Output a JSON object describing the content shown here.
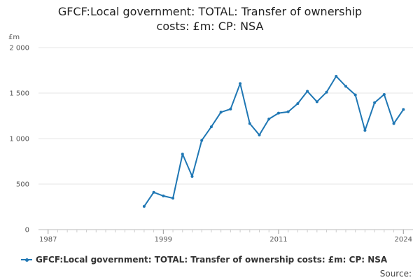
{
  "chart_data": {
    "type": "line",
    "title_lines": [
      "GFCF:Local government: TOTAL: Transfer of ownership",
      "costs: £m: CP: NSA"
    ],
    "unit_label": "£m",
    "xlim": [
      1986,
      2025
    ],
    "ylim": [
      0,
      2000
    ],
    "x_ticks": [
      1987,
      1999,
      2011,
      2024
    ],
    "y_ticks": [
      0,
      500,
      1000,
      1500,
      2000
    ],
    "y_tick_labels": [
      "0",
      "500",
      "1 000",
      "1 500",
      "2 000"
    ],
    "grid": "horizontal",
    "legend_position": "bottom",
    "series": [
      {
        "name": "GFCF:Local government: TOTAL: Transfer of ownership costs: £m: CP: NSA",
        "color": "#1f77b4",
        "x": [
          1997,
          1998,
          1999,
          2000,
          2001,
          2002,
          2003,
          2004,
          2005,
          2006,
          2007,
          2008,
          2009,
          2010,
          2011,
          2012,
          2013,
          2014,
          2015,
          2016,
          2017,
          2018,
          2019,
          2020,
          2021,
          2022,
          2023,
          2024
        ],
        "values": [
          255,
          410,
          370,
          345,
          830,
          585,
          980,
          1130,
          1290,
          1325,
          1605,
          1165,
          1040,
          1215,
          1280,
          1295,
          1385,
          1520,
          1405,
          1510,
          1685,
          1575,
          1480,
          1090,
          1395,
          1485,
          1165,
          1320
        ]
      }
    ]
  },
  "footer": {
    "source_label": "Source:"
  }
}
